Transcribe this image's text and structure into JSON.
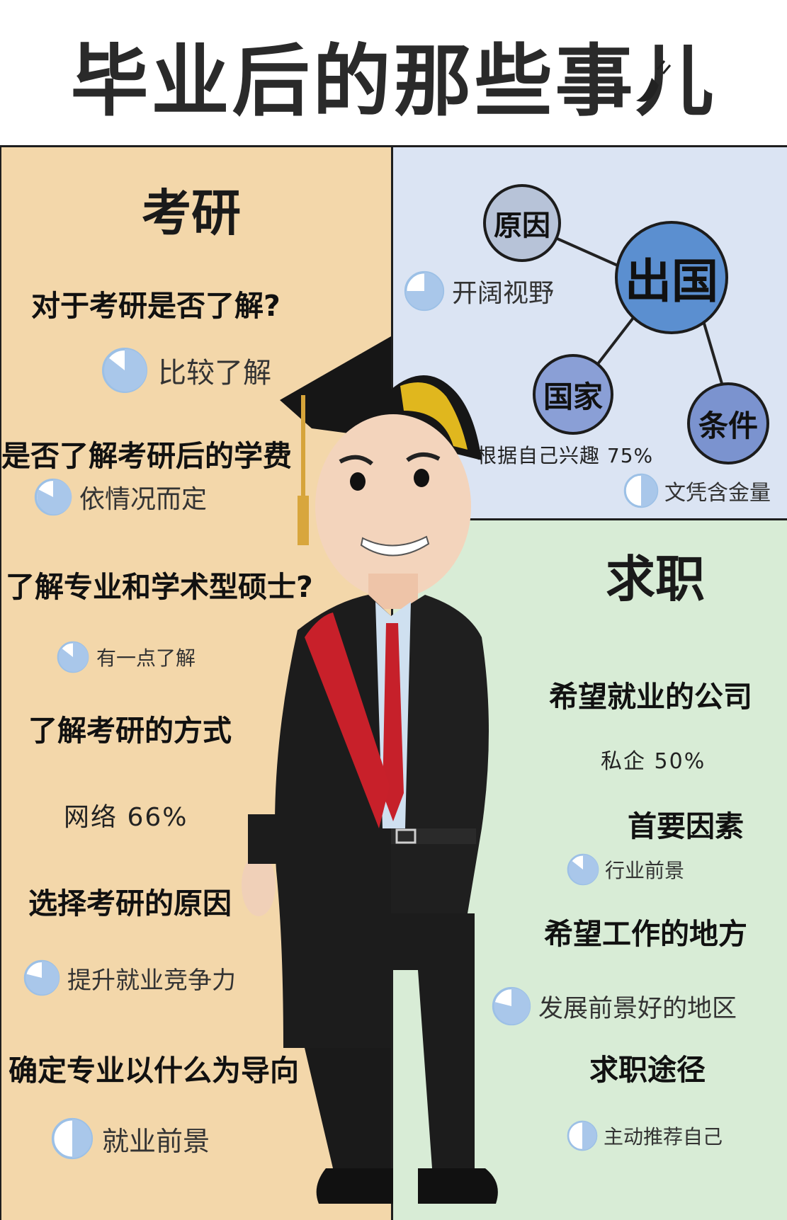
{
  "title": "毕业后的那些事儿",
  "kaoyan": {
    "heading": "考研",
    "items": [
      {
        "question": "对于考研是否了解?",
        "answer": "比较了解",
        "icon": "pie-chart-icon"
      },
      {
        "question": "是否了解考研后的学费",
        "answer": "依情况而定",
        "icon": "pie-chart-icon"
      },
      {
        "question": "了解专业和学术型硕士?",
        "answer": "有一点了解",
        "icon": "pie-chart-icon"
      },
      {
        "question": "了解考研的方式",
        "answer": "网络 66%"
      },
      {
        "question": "选择考研的原因",
        "answer": "提升就业竞争力",
        "icon": "pie-chart-icon"
      },
      {
        "question": "确定专业以什么为导向",
        "answer": "就业前景",
        "icon": "pie-chart-icon"
      }
    ]
  },
  "chuguo": {
    "center": "出国",
    "nodes": {
      "reason": "原因",
      "country": "国家",
      "condition": "条件"
    },
    "reason_answer": "开阔视野",
    "country_answer": "根据自己兴趣 75%",
    "condition_answer": "文凭含金量"
  },
  "qiuzhi": {
    "heading": "求职",
    "items": [
      {
        "question": "希望就业的公司",
        "answer": "私企 50%"
      },
      {
        "question": "首要因素",
        "answer": "行业前景",
        "icon": "pie-chart-icon"
      },
      {
        "question": "希望工作的地方",
        "answer": "发展前景好的地区",
        "icon": "pie-chart-icon"
      },
      {
        "question": "求职途径",
        "answer": "主动推荐自己",
        "icon": "pie-chart-icon"
      }
    ]
  },
  "colors": {
    "kaoyan_bg": "#f3d7aa",
    "chuguo_bg": "#dbe4f3",
    "qiuzhi_bg": "#d8ecd6",
    "pie_fill": "#a9c7ea",
    "node_blue": "#5b8fd0"
  }
}
